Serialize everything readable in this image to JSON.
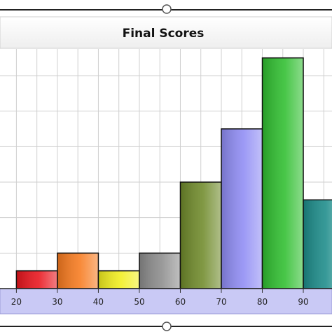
{
  "chart_data": {
    "type": "bar",
    "title": "Final Scores",
    "xlabel": "",
    "ylabel": "",
    "x_ticks": [
      "20",
      "30",
      "40",
      "50",
      "60",
      "70",
      "80",
      "90"
    ],
    "bins": [
      {
        "start": 20,
        "end": 30,
        "value": 1,
        "color": "#e8141c"
      },
      {
        "start": 30,
        "end": 40,
        "value": 2,
        "color": "#f77a1e"
      },
      {
        "start": 40,
        "end": 50,
        "value": 1,
        "color": "#f2ee1e"
      },
      {
        "start": 50,
        "end": 60,
        "value": 2,
        "color": "#8c8c8c"
      },
      {
        "start": 60,
        "end": 70,
        "value": 6,
        "color": "#6f8a2a"
      },
      {
        "start": 70,
        "end": 80,
        "value": 9,
        "color": "#8f8cf4"
      },
      {
        "start": 80,
        "end": 90,
        "value": 13,
        "color": "#2fbe2f"
      },
      {
        "start": 90,
        "end": 100,
        "value": 5,
        "color": "#1c8c8a"
      }
    ],
    "xlim": [
      16,
      97
    ],
    "ylim": [
      0,
      13.5
    ],
    "y_grid_step": 2,
    "x_grid_step": 10,
    "grid": true,
    "legend": "none"
  }
}
